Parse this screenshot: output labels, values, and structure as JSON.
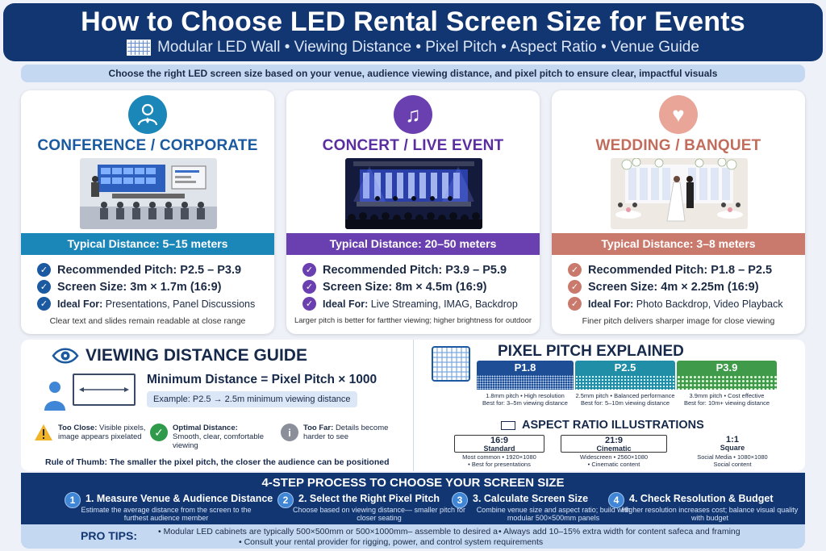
{
  "header": {
    "title": "How to Choose LED Rental Screen Size for Events",
    "subtitle": "Modular LED Wall • Viewing Distance • Pixel Pitch • Aspect Ratio • Venue Guide"
  },
  "intro": "Choose the right LED screen size based on your venue, audience viewing distance, and pixel pitch to ensure clear, impactful visuals",
  "cards": [
    {
      "title": "CONFERENCE / CORPORATE",
      "color": "#1b86b8",
      "band": "Typical Distance: 5–15 meters",
      "pitch": "Recommended Pitch: P2.5 – P3.9",
      "size": "Screen Size: 3m × 1.7m (16:9)",
      "ideal_label": "Ideal For:",
      "ideal": "Presentations, Panel Discussions",
      "note": "Clear text and slides remain readable at close range"
    },
    {
      "title": "CONCERT / LIVE EVENT",
      "color": "#6a3fb0",
      "band": "Typical Distance: 20–50 meters",
      "pitch": "Recommended Pitch: P3.9 – P5.9",
      "size": "Screen Size: 8m × 4.5m (16:9)",
      "ideal_label": "Ideal For:",
      "ideal": "Live Streaming, IMAG, Backdrop",
      "note": "Larger pitch is better for fartther viewing; higher brightness for outdoor"
    },
    {
      "title": "WEDDING / BANQUET",
      "color": "#c97a6d",
      "band": "Typical Distance: 3–8 meters",
      "pitch": "Recommended Pitch: P1.8 – P2.5",
      "size": "Screen Size: 4m × 2.25m (16:9)",
      "ideal_label": "Ideal For:",
      "ideal": "Photo Backdrop, Video Playback",
      "note": "Finer pitch delivers sharper image for close viewing"
    }
  ],
  "viewing": {
    "title": "VIEWING DISTANCE GUIDE",
    "formula": "Minimum Distance = Pixel Pitch × 1000",
    "example": "Example: P2.5 → 2.5m minimum viewing distance",
    "close_label": "Too Close:",
    "close_text1": "Visible pixels,",
    "close_text2": "image appears pixelated",
    "optimal_label": "Optimal Distance:",
    "optimal_text1": "Smooth, clear, comfortable",
    "optimal_text2": "viewing",
    "far_label": "Too Far:",
    "far_text1": "Details become",
    "far_text2": "harder to see",
    "rule": "Rule of Thumb: The smaller the pixel pitch, the closer the audience can be positioned"
  },
  "pitch": {
    "title": "PIXEL PITCH EXPLAINED",
    "items": [
      {
        "label": "P1.8",
        "color": "#1e4f96",
        "line1": "1.8mm pitch • High resolution",
        "line2": "Best for: 3–5m viewing distance"
      },
      {
        "label": "P2.5",
        "color": "#1f8ea6",
        "line1": "2.5mm pitch • Balanced performance",
        "line2": "Best for: 5–10m viewing distance"
      },
      {
        "label": "P3.9",
        "color": "#3f9a4a",
        "line1": "3.9mm pitch • Cost effective",
        "line2": "Best for: 10m+ viewing distance"
      }
    ]
  },
  "aspect": {
    "title": "ASPECT RATIO ILLUSTRATIONS",
    "items": [
      {
        "ratio": "16:9",
        "name": "Standard",
        "line1": "Most common • 1920×1080",
        "line2": "• Best for presentations"
      },
      {
        "ratio": "21:9",
        "name": "Cinematic",
        "line1": "Widescreen • 2560×1080",
        "line2": "• Cinematic content"
      },
      {
        "ratio": "1:1",
        "name": "Square",
        "line1": "Social Media • 1080×1080",
        "line2": "Social content"
      }
    ]
  },
  "process": {
    "title": "4-STEP PROCESS TO CHOOSE YOUR SCREEN SIZE",
    "steps": [
      {
        "num": "1",
        "title": "1. Measure Venue & Audience Distance",
        "desc": "Estimate the average distance from the screen to the furthest audience member"
      },
      {
        "num": "2",
        "title": "2. Select the Right Pixel Pitch",
        "desc": "Choose based on viewing distance— smaller pitch for closer seating"
      },
      {
        "num": "3",
        "title": "3. Calculate Screen Size",
        "desc": "Combine venue size and aspect ratio; build with modular 500×500mm panels"
      },
      {
        "num": "4",
        "title": "4. Check Resolution & Budget",
        "desc": "Higher resolution increases cost; balance visual quality with budget"
      }
    ]
  },
  "tips": {
    "label": "PRO TIPS:",
    "tip1": "• Modular LED cabinets are typically 500×500mm or 500×1000mm– assemble to desired a",
    "tip2": "• Always add 10–15% extra width for content safeca and framing",
    "tip3": "• Consult your rental provider for rigging, power, and control system requirements"
  }
}
